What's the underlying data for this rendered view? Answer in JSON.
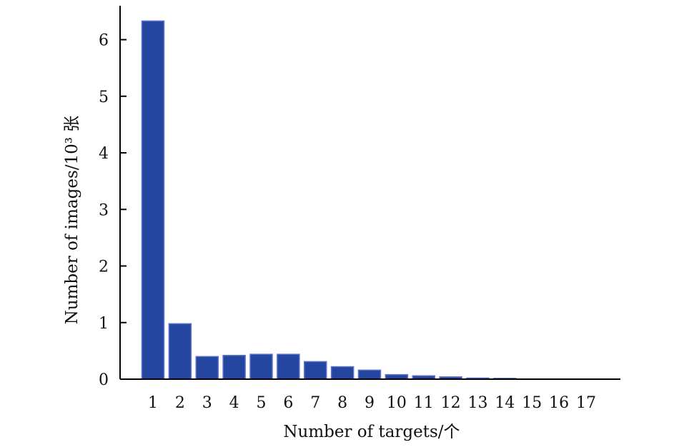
{
  "chart_data": {
    "type": "bar",
    "categories": [
      "1",
      "2",
      "3",
      "4",
      "5",
      "6",
      "7",
      "8",
      "9",
      "10",
      "11",
      "12",
      "13",
      "14",
      "15",
      "16",
      "17"
    ],
    "values": [
      6.33,
      0.98,
      0.4,
      0.42,
      0.44,
      0.44,
      0.31,
      0.22,
      0.16,
      0.08,
      0.06,
      0.04,
      0.02,
      0.015,
      0,
      0,
      0
    ],
    "xlabel": "Number of targets/个",
    "ylabel": "Number of images/10³ 张",
    "ylim": [
      0,
      6.6
    ],
    "yticks": [
      0,
      1,
      2,
      3,
      4,
      5,
      6
    ],
    "bar_color": "#2446a0",
    "grid": false,
    "legend": "none"
  }
}
